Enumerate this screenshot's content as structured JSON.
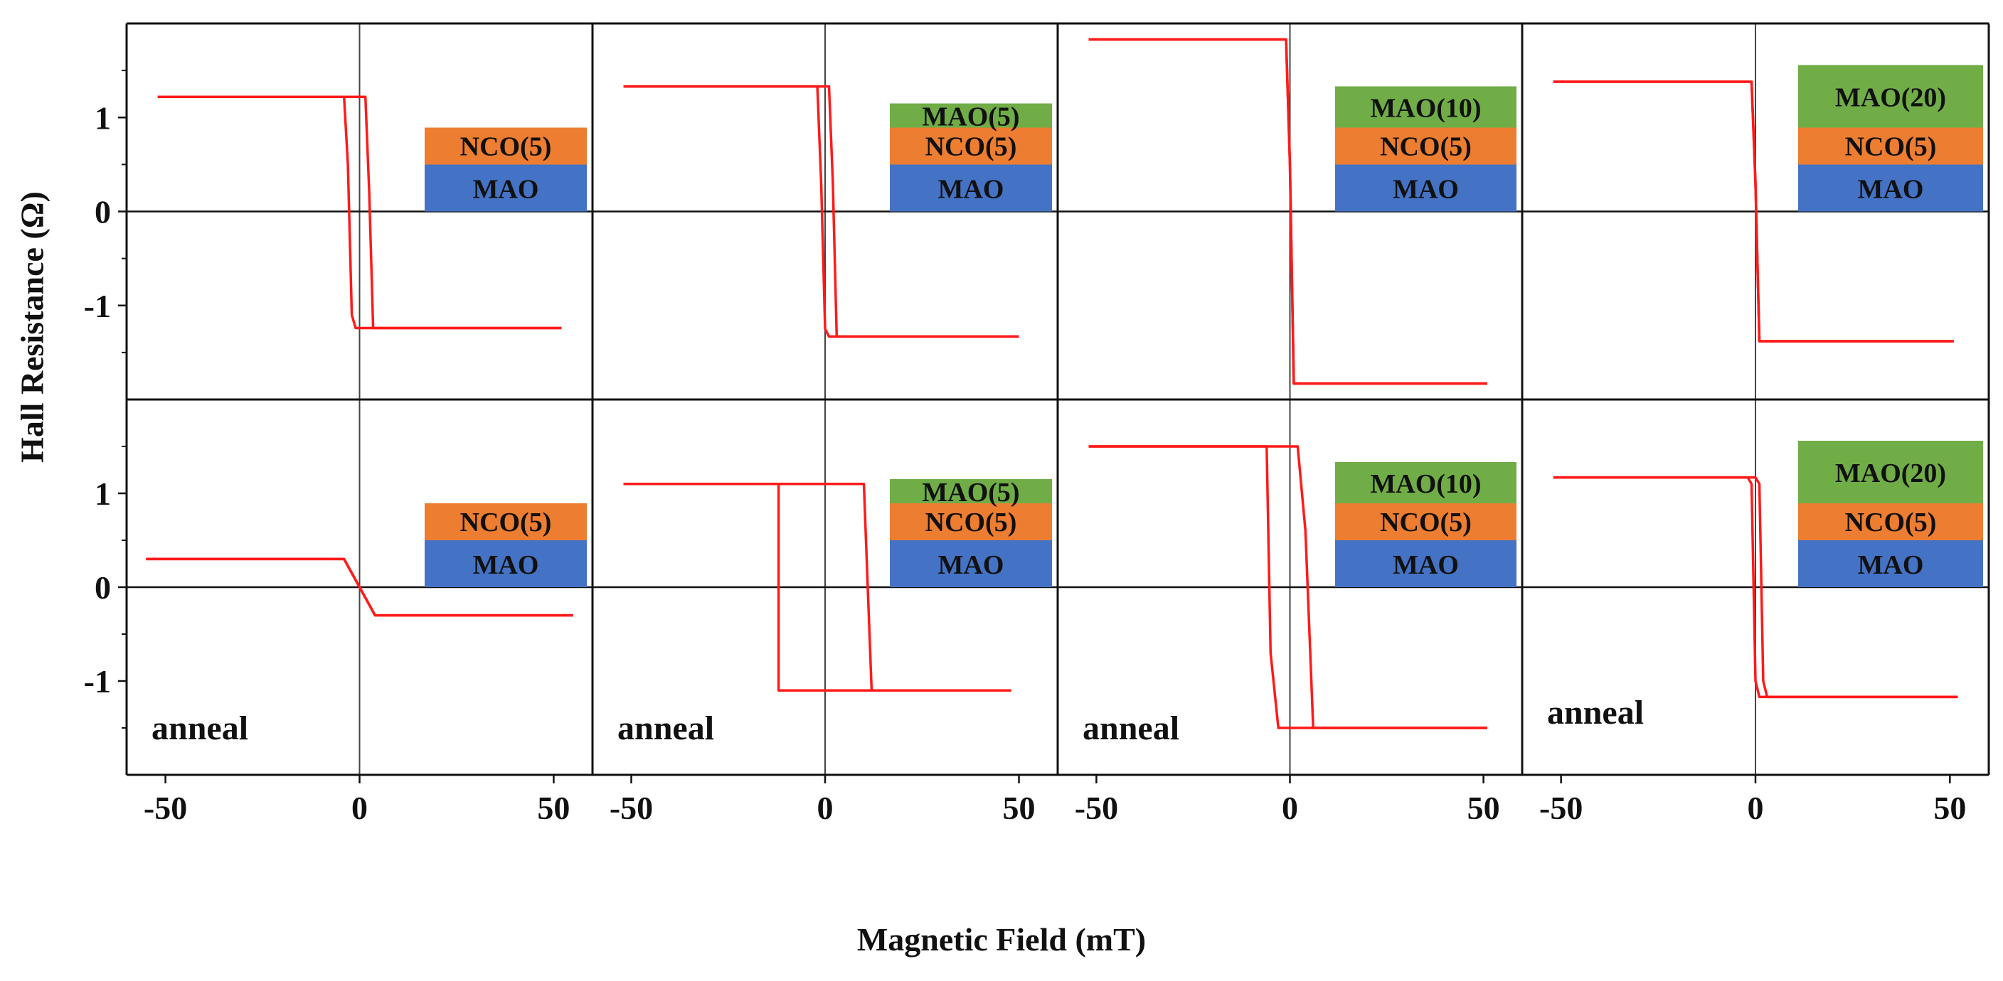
{
  "chart_data": {
    "type": "line",
    "xlabel": "Magnetic Field (mT)",
    "ylabel": "Hall Resistance (Ω)",
    "xlim": [
      -60,
      60
    ],
    "ylim": [
      -2,
      2
    ],
    "x_ticks": [
      -50,
      0,
      50
    ],
    "x_tick_labels": [
      "-50",
      "0",
      "50"
    ],
    "y_ticks": [
      1,
      0,
      -1
    ],
    "y_tick_labels": [
      "1",
      "0",
      "-1"
    ],
    "series_color": "#ff1a1a",
    "layer_colors": {
      "MAO": "#4472c4",
      "NCO": "#ed7d31",
      "MAO_cap": "#70ad47"
    },
    "panels": [
      {
        "row": 1,
        "col": 1,
        "annotation": "",
        "layers": [
          "NCO(5)",
          "MAO"
        ],
        "x": [
          -52,
          -4,
          -3,
          -2,
          -1,
          3,
          52
        ],
        "upper_y": [
          1.22,
          1.22,
          0.5,
          -1.1,
          -1.24,
          -1.24,
          -1.24
        ],
        "x_return": [
          -52,
          1.5,
          2.5,
          3.5,
          52
        ],
        "lower_y": [
          1.22,
          1.22,
          0.2,
          -1.24,
          -1.24
        ]
      },
      {
        "row": 1,
        "col": 2,
        "annotation": "",
        "layers": [
          "MAO(5)",
          "NCO(5)",
          "MAO"
        ],
        "x": [
          -52,
          -2,
          -1,
          0,
          1,
          50
        ],
        "upper_y": [
          1.33,
          1.33,
          0.3,
          -1.25,
          -1.33,
          -1.33
        ],
        "x_return": [
          -52,
          1,
          2,
          3,
          50
        ],
        "lower_y": [
          1.33,
          1.33,
          0.3,
          -1.33,
          -1.33
        ]
      },
      {
        "row": 1,
        "col": 3,
        "annotation": "",
        "layers": [
          "MAO(10)",
          "NCO(5)",
          "MAO"
        ],
        "x": [
          -52,
          -1,
          0,
          1,
          51
        ],
        "upper_y": [
          1.83,
          1.83,
          0.5,
          -1.83,
          -1.83
        ],
        "x_return": [
          -52,
          -1,
          0,
          1,
          51
        ],
        "lower_y": [
          1.83,
          1.83,
          0.5,
          -1.83,
          -1.83
        ]
      },
      {
        "row": 1,
        "col": 4,
        "annotation": "",
        "layers": [
          "MAO(20)",
          "NCO(5)",
          "MAO"
        ],
        "x": [
          -52,
          -1,
          0,
          1,
          51
        ],
        "upper_y": [
          1.38,
          1.38,
          0.3,
          -1.38,
          -1.38
        ],
        "x_return": [
          -52,
          -1,
          0,
          1,
          51
        ],
        "lower_y": [
          1.38,
          1.38,
          0.3,
          -1.38,
          -1.38
        ]
      },
      {
        "row": 2,
        "col": 1,
        "annotation": "anneal",
        "layers": [
          "NCO(5)",
          "MAO"
        ],
        "x": [
          -55,
          -4,
          4,
          55
        ],
        "upper_y": [
          0.3,
          0.3,
          -0.3,
          -0.3
        ],
        "x_return": [
          -55,
          -4,
          4,
          55
        ],
        "lower_y": [
          0.3,
          0.3,
          -0.3,
          -0.3
        ]
      },
      {
        "row": 2,
        "col": 2,
        "annotation": "anneal",
        "layers": [
          "MAO(5)",
          "NCO(5)",
          "MAO"
        ],
        "x": [
          -52,
          -12,
          -12,
          48
        ],
        "upper_y": [
          1.1,
          1.1,
          -1.1,
          -1.1
        ],
        "x_return": [
          -52,
          10,
          12,
          48
        ],
        "lower_y": [
          1.1,
          1.1,
          -1.1,
          -1.1
        ]
      },
      {
        "row": 2,
        "col": 3,
        "annotation": "anneal",
        "layers": [
          "MAO(10)",
          "NCO(5)",
          "MAO"
        ],
        "x": [
          -52,
          -6,
          -5,
          -3,
          51
        ],
        "upper_y": [
          1.5,
          1.5,
          -0.7,
          -1.5,
          -1.5
        ],
        "x_return": [
          -52,
          2,
          4,
          6,
          51
        ],
        "lower_y": [
          1.5,
          1.5,
          0.6,
          -1.5,
          -1.5
        ]
      },
      {
        "row": 2,
        "col": 4,
        "annotation": "anneal",
        "layers": [
          "MAO(20)",
          "NCO(5)",
          "MAO"
        ],
        "x": [
          -52,
          -2,
          -1,
          0,
          1,
          52
        ],
        "upper_y": [
          1.17,
          1.17,
          1.1,
          -1.0,
          -1.17,
          -1.17
        ],
        "x_return": [
          -52,
          0,
          1,
          2,
          3,
          52
        ],
        "lower_y": [
          1.17,
          1.17,
          1.1,
          -1.0,
          -1.17,
          -1.17
        ]
      }
    ]
  }
}
